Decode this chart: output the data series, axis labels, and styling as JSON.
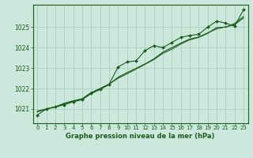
{
  "title": "Graphe pression niveau de la mer (hPa)",
  "background_color": "#cce8dc",
  "grid_color": "#aacfbf",
  "line_color": "#1a5c1a",
  "x_ticks": [
    0,
    1,
    2,
    3,
    4,
    5,
    6,
    7,
    8,
    9,
    10,
    11,
    12,
    13,
    14,
    15,
    16,
    17,
    18,
    19,
    20,
    21,
    22,
    23
  ],
  "y_ticks": [
    1021,
    1022,
    1023,
    1024,
    1025
  ],
  "ylim": [
    1020.3,
    1026.1
  ],
  "xlim": [
    -0.5,
    23.5
  ],
  "line1": [
    1020.7,
    1021.0,
    1021.1,
    1021.2,
    1021.35,
    1021.45,
    1021.75,
    1021.95,
    1022.2,
    1023.05,
    1023.3,
    1023.35,
    1023.85,
    1024.1,
    1024.0,
    1024.25,
    1024.5,
    1024.6,
    1024.65,
    1025.0,
    1025.3,
    1025.2,
    1025.05,
    1025.85
  ],
  "line2": [
    1020.85,
    1021.0,
    1021.1,
    1021.25,
    1021.38,
    1021.48,
    1021.78,
    1021.98,
    1022.2,
    1022.55,
    1022.78,
    1022.98,
    1023.2,
    1023.45,
    1023.78,
    1024.0,
    1024.22,
    1024.42,
    1024.52,
    1024.72,
    1024.92,
    1025.02,
    1025.12,
    1025.45
  ],
  "line3": [
    1020.9,
    1021.0,
    1021.1,
    1021.28,
    1021.4,
    1021.5,
    1021.8,
    1022.0,
    1022.22,
    1022.5,
    1022.72,
    1022.95,
    1023.18,
    1023.42,
    1023.72,
    1023.92,
    1024.18,
    1024.38,
    1024.5,
    1024.7,
    1024.98,
    1025.0,
    1025.18,
    1025.52
  ]
}
